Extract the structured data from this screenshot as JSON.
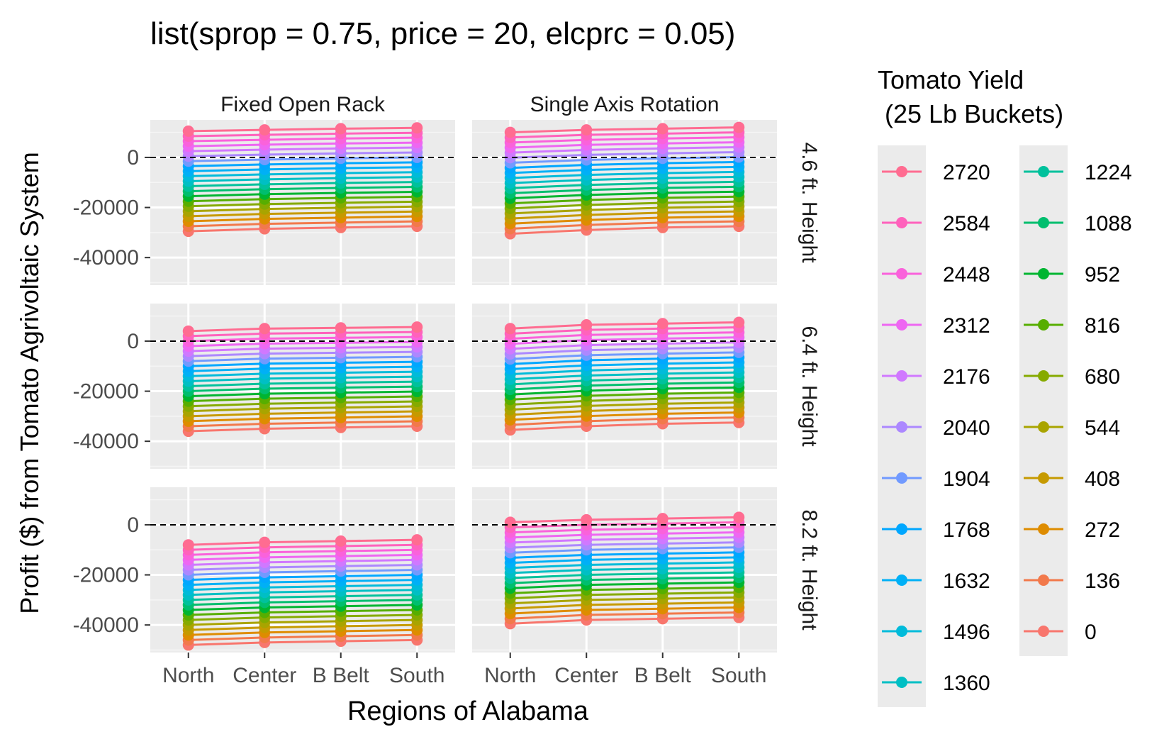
{
  "chart_data": {
    "type": "line",
    "title": "list(sprop = 0.75, price = 20, elcprc = 0.05)",
    "xlabel": "Regions of Alabama",
    "ylabel": "Profit ($) from Tomato Agrivoltaic System",
    "categories": [
      "North",
      "Center",
      "B Belt",
      "South"
    ],
    "yticks": [
      0,
      -20000,
      -40000
    ],
    "ytick_labels": [
      "0",
      "-20000",
      "-40000"
    ],
    "ylim": [
      -51000,
      15000
    ],
    "reference_line": 0,
    "grid": true,
    "facet_columns": [
      "Fixed Open Rack",
      "Single Axis Rotation"
    ],
    "facet_rows": [
      "4.6 ft. Height",
      "6.4 ft. Height",
      "8.2 ft. Height"
    ],
    "legend": {
      "title_line1": "Tomato Yield",
      "title_line2": " (25 Lb Buckets)",
      "placement": "right",
      "items": [
        "2720",
        "2584",
        "2448",
        "2312",
        "2176",
        "2040",
        "1904",
        "1768",
        "1632",
        "1496",
        "1360",
        "1224",
        "1088",
        "952",
        "816",
        "680",
        "544",
        "408",
        "272",
        "136",
        "0"
      ],
      "colors": [
        "#FF6C91",
        "#FF62BC",
        "#FA62DB",
        "#EE67F2",
        "#D078FF",
        "#AC88FF",
        "#719AFF",
        "#00A7FF",
        "#00B0F6",
        "#00BBDA",
        "#00BFC4",
        "#00C19C",
        "#00BE6E",
        "#00B531",
        "#57AE00",
        "#86AA00",
        "#A9A400",
        "#C69A00",
        "#DE8C00",
        "#F2794B",
        "#F8766D"
      ]
    },
    "panels": [
      {
        "col": 0,
        "row": 0,
        "top": [
          10500,
          11000,
          11500,
          11800
        ],
        "bottom": [
          -29500,
          -28500,
          -28000,
          -27500
        ]
      },
      {
        "col": 1,
        "row": 0,
        "top": [
          10000,
          11000,
          11500,
          12000
        ],
        "bottom": [
          -30500,
          -29000,
          -28000,
          -27500
        ]
      },
      {
        "col": 0,
        "row": 1,
        "top": [
          4000,
          5000,
          5300,
          5600
        ],
        "bottom": [
          -36000,
          -35000,
          -34500,
          -34000
        ]
      },
      {
        "col": 1,
        "row": 1,
        "top": [
          5000,
          6500,
          7000,
          7500
        ],
        "bottom": [
          -35500,
          -34000,
          -33000,
          -32500
        ]
      },
      {
        "col": 0,
        "row": 2,
        "top": [
          -8000,
          -7000,
          -6500,
          -6000
        ],
        "bottom": [
          -48000,
          -47000,
          -46500,
          -46000
        ]
      },
      {
        "col": 1,
        "row": 2,
        "top": [
          1000,
          2000,
          2500,
          3000
        ],
        "bottom": [
          -39500,
          -38000,
          -37500,
          -37000
        ]
      }
    ]
  }
}
